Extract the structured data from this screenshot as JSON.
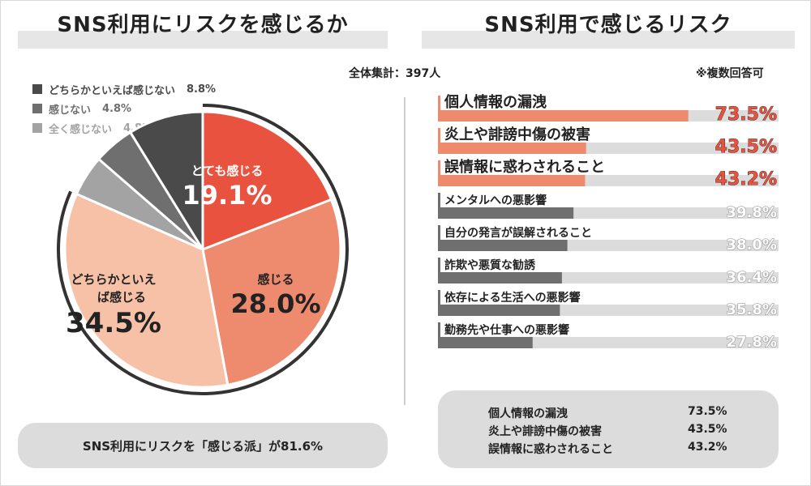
{
  "left": {
    "title": "SNS利用にリスクを感じるか",
    "summary": "SNS利用にリスクを「感じる派」が81.6%"
  },
  "right": {
    "title": "SNS利用で感じるリスク",
    "note": "※複数回答可",
    "summary": [
      {
        "label": "個人情報の漏洩",
        "value": "73.5%"
      },
      {
        "label": "炎上や誹謗中傷の被害",
        "value": "43.5%"
      },
      {
        "label": "誤情報に惑わされること",
        "value": "43.2%"
      }
    ]
  },
  "total_label": "全体集計：397人",
  "colors": {
    "accent": "#e8523e",
    "mid": "#ee8a6e",
    "light": "#f7c1a8",
    "dark": "#4a4a4a",
    "gray": "#6f6f6f",
    "lightgray": "#a3a3a3",
    "track": "#dcdcdc"
  },
  "chart_data": [
    {
      "type": "pie",
      "slices": [
        {
          "label": "とても感じる",
          "value": 19.1,
          "value_label": "19.1%",
          "color": "#e8523e"
        },
        {
          "label": "感じる",
          "value": 28.0,
          "value_label": "28.0%",
          "color": "#ee8a6e"
        },
        {
          "label": "どちらかといえば感じる",
          "value": 34.5,
          "value_label": "34.5%",
          "color": "#f7c1a8"
        },
        {
          "label": "全く感じない",
          "value": 4.8,
          "value_label": "4.8%",
          "color": "#a3a3a3"
        },
        {
          "label": "感じない",
          "value": 4.8,
          "value_label": "4.8%",
          "color": "#6f6f6f"
        },
        {
          "label": "どちらかといえば感じない",
          "value": 8.8,
          "value_label": "8.8%",
          "color": "#4a4a4a"
        }
      ],
      "legend": [
        {
          "label": "どちらかといえば感じない",
          "value": "8.8%",
          "color": "#4a4a4a"
        },
        {
          "label": "感じない",
          "value": "4.8%",
          "color": "#6f6f6f"
        },
        {
          "label": "全く感じない",
          "value": "4.8%",
          "color": "#a3a3a3"
        }
      ],
      "legend_position": "top-left"
    },
    {
      "type": "bar",
      "orientation": "horizontal",
      "categories": [
        "個人情報の漏洩",
        "炎上や誹謗中傷の被害",
        "誤情報に惑わされること",
        "メンタルへの悪影響",
        "自分の発言が誤解されること",
        "詐欺や悪質な勧誘",
        "依存による生活への悪影響",
        "勤務先や仕事への悪影響"
      ],
      "values": [
        73.5,
        43.5,
        43.2,
        39.8,
        38.0,
        36.4,
        35.8,
        27.8
      ],
      "value_labels": [
        "73.5%",
        "43.5%",
        "43.2%",
        "39.8%",
        "38.0%",
        "36.4%",
        "35.8%",
        "27.8%"
      ],
      "highlight_count": 3,
      "xlim": [
        0,
        100
      ]
    }
  ]
}
